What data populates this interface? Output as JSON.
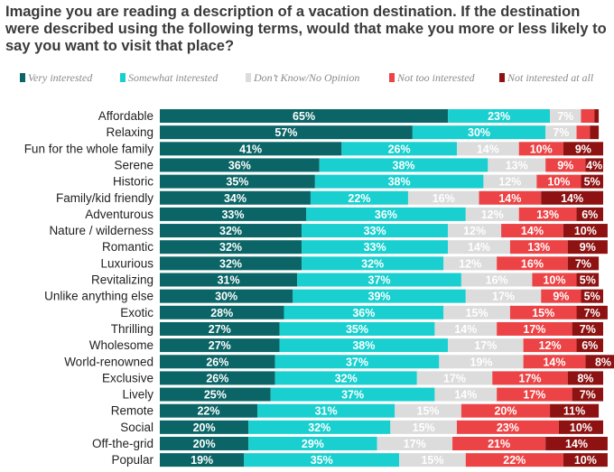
{
  "title": "Imagine you are reading a description of a vacation destination. If the destination were described using the following terms, would that make you more or less likely to say you want to visit that place?",
  "chart_data": {
    "type": "stacked-bar-horizontal",
    "title": "Imagine you are reading a description of a vacation destination. If the destination were described using the following terms, would that make you more or less likely to say you want to visit that place?",
    "legend_position": "top",
    "series": [
      {
        "name": "Very interested",
        "color": "#0b6566",
        "label_color": "#ffffff",
        "values": [
          65,
          57,
          41,
          36,
          35,
          34,
          33,
          32,
          32,
          32,
          31,
          30,
          28,
          27,
          27,
          26,
          26,
          25,
          22,
          20,
          20,
          19
        ]
      },
      {
        "name": "Somewhat interested",
        "color": "#19cfcf",
        "label_color": "#ffffff",
        "values": [
          23,
          30,
          26,
          38,
          38,
          22,
          36,
          33,
          33,
          32,
          37,
          39,
          36,
          35,
          38,
          37,
          32,
          37,
          31,
          32,
          29,
          35
        ]
      },
      {
        "name": "Don’t Know/No Opinion",
        "color": "#dcdcdc",
        "label_color": "#ffffff",
        "values": [
          7,
          7,
          14,
          13,
          12,
          16,
          12,
          12,
          14,
          12,
          16,
          17,
          15,
          14,
          17,
          19,
          17,
          14,
          15,
          15,
          17,
          15
        ]
      },
      {
        "name": "Not too interested",
        "color": "#ec4446",
        "label_color": "#ffffff",
        "values": [
          3,
          3,
          10,
          9,
          10,
          14,
          13,
          14,
          13,
          16,
          10,
          9,
          15,
          17,
          12,
          14,
          17,
          17,
          20,
          23,
          21,
          22
        ]
      },
      {
        "name": "Not interested at all",
        "color": "#8e1212",
        "label_color": "#ffffff",
        "values": [
          1,
          2,
          9,
          4,
          5,
          14,
          6,
          10,
          9,
          7,
          5,
          5,
          7,
          7,
          6,
          8,
          8,
          7,
          11,
          10,
          14,
          10
        ]
      }
    ],
    "label_threshold": 4,
    "categories": [
      "Affordable",
      "Relaxing",
      "Fun for the whole family",
      "Serene",
      "Historic",
      "Family/kid friendly",
      "Adventurous",
      "Nature / wilderness",
      "Romantic",
      "Luxurious",
      "Revitalizing",
      "Unlike anything else",
      "Exotic",
      "Thrilling",
      "Wholesome",
      "World-renowned",
      "Exclusive",
      "Lively",
      "Remote",
      "Social",
      "Off-the-grid",
      "Popular"
    ],
    "value_suffix": "%",
    "xlim": [
      0,
      100
    ]
  }
}
